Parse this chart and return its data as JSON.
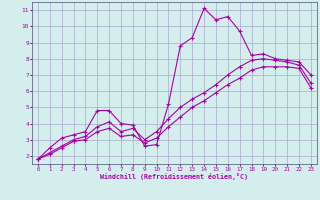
{
  "background_color": "#d4eeee",
  "grid_color": "#aaaacc",
  "line_color": "#aa00aa",
  "xlabel": "Windchill (Refroidissement éolien,°C)",
  "xlim": [
    -0.5,
    23.5
  ],
  "ylim": [
    1.5,
    11.5
  ],
  "xticks": [
    0,
    1,
    2,
    3,
    4,
    5,
    6,
    7,
    8,
    9,
    10,
    11,
    12,
    13,
    14,
    15,
    16,
    17,
    18,
    19,
    20,
    21,
    22,
    23
  ],
  "yticks": [
    2,
    3,
    4,
    5,
    6,
    7,
    8,
    9,
    10,
    11
  ],
  "series1_x": [
    0,
    1,
    2,
    3,
    4,
    5,
    6,
    7,
    8,
    9,
    10,
    11,
    12,
    13,
    14,
    15,
    16,
    17,
    18,
    19,
    20,
    21,
    22,
    23
  ],
  "series1_y": [
    1.8,
    2.5,
    3.1,
    3.3,
    3.5,
    4.8,
    4.8,
    4.0,
    3.9,
    2.6,
    2.7,
    5.2,
    8.8,
    9.3,
    11.1,
    10.4,
    10.6,
    9.7,
    8.2,
    8.3,
    8.0,
    7.9,
    7.8,
    7.0
  ],
  "series2_x": [
    0,
    1,
    2,
    3,
    4,
    5,
    6,
    7,
    8,
    9,
    10,
    11,
    12,
    13,
    14,
    15,
    16,
    17,
    18,
    19,
    20,
    21,
    22,
    23
  ],
  "series2_y": [
    1.8,
    2.2,
    2.6,
    3.0,
    3.2,
    3.8,
    4.1,
    3.5,
    3.7,
    3.0,
    3.5,
    4.3,
    5.0,
    5.5,
    5.9,
    6.4,
    7.0,
    7.5,
    7.9,
    8.0,
    7.9,
    7.8,
    7.6,
    6.5
  ],
  "series3_x": [
    0,
    1,
    2,
    3,
    4,
    5,
    6,
    7,
    8,
    9,
    10,
    11,
    12,
    13,
    14,
    15,
    16,
    17,
    18,
    19,
    20,
    21,
    22,
    23
  ],
  "series3_y": [
    1.8,
    2.1,
    2.5,
    2.9,
    3.0,
    3.5,
    3.7,
    3.2,
    3.3,
    2.8,
    3.1,
    3.8,
    4.4,
    5.0,
    5.4,
    5.9,
    6.4,
    6.8,
    7.3,
    7.5,
    7.5,
    7.5,
    7.4,
    6.2
  ]
}
